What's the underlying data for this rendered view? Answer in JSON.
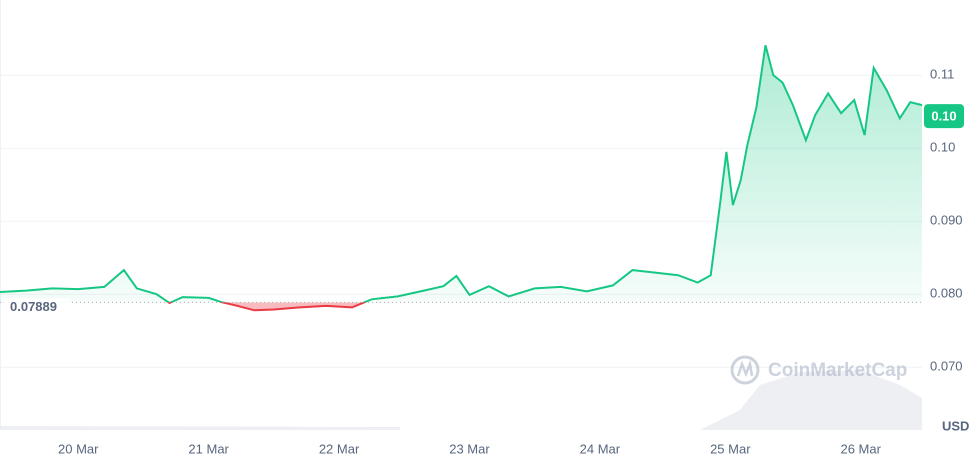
{
  "chart_data": {
    "type": "line",
    "x": [
      19.4,
      19.6,
      19.8,
      20.0,
      20.2,
      20.35,
      20.45,
      20.6,
      20.7,
      20.8,
      21.0,
      21.1,
      21.2,
      21.35,
      21.5,
      21.7,
      21.9,
      22.1,
      22.25,
      22.45,
      22.65,
      22.8,
      22.9,
      23.0,
      23.15,
      23.3,
      23.5,
      23.7,
      23.9,
      24.1,
      24.25,
      24.45,
      24.6,
      24.75,
      24.85,
      24.92,
      24.97,
      25.02,
      25.08,
      25.13,
      25.2,
      25.27,
      25.33,
      25.4,
      25.48,
      25.58,
      25.65,
      25.75,
      25.85,
      25.95,
      26.03,
      26.1,
      26.2,
      26.3,
      26.38,
      26.47
    ],
    "values": [
      0.0803,
      0.0805,
      0.0808,
      0.0807,
      0.081,
      0.0833,
      0.0808,
      0.08,
      0.0788,
      0.0796,
      0.0795,
      0.0789,
      0.0785,
      0.0778,
      0.0779,
      0.0782,
      0.0784,
      0.0782,
      0.0793,
      0.0797,
      0.0805,
      0.0811,
      0.0825,
      0.0799,
      0.0811,
      0.0797,
      0.0808,
      0.081,
      0.0804,
      0.0812,
      0.0833,
      0.0829,
      0.0826,
      0.0816,
      0.0826,
      0.0922,
      0.0995,
      0.0922,
      0.0956,
      0.1004,
      0.1056,
      0.1141,
      0.11,
      0.109,
      0.1059,
      0.1011,
      0.1045,
      0.1075,
      0.1048,
      0.1066,
      0.1018,
      0.111,
      0.1079,
      0.1041,
      0.1063,
      0.1059
    ],
    "xlim": [
      19.4,
      26.47
    ],
    "xticks": [
      {
        "value": 20,
        "label": "20 Mar"
      },
      {
        "value": 21,
        "label": "21 Mar"
      },
      {
        "value": 22,
        "label": "22 Mar"
      },
      {
        "value": 23,
        "label": "23 Mar"
      },
      {
        "value": 24,
        "label": "24 Mar"
      },
      {
        "value": 25,
        "label": "25 Mar"
      },
      {
        "value": 26,
        "label": "26 Mar"
      }
    ],
    "ylim": [
      0.0614,
      0.1203
    ],
    "yticks": [
      {
        "value": 0.07,
        "label": "0.070"
      },
      {
        "value": 0.08,
        "label": "0.080"
      },
      {
        "value": 0.09,
        "label": "0.090"
      },
      {
        "value": 0.1,
        "label": "0.10"
      },
      0.11
    ],
    "baseline": 0.07889,
    "current_price": {
      "value": 0.1044,
      "label": "0.10"
    },
    "unit": "USD",
    "watermark": "CoinMarketCap",
    "up_color": "#16c784",
    "down_color": "#ea3943",
    "grid": true
  }
}
